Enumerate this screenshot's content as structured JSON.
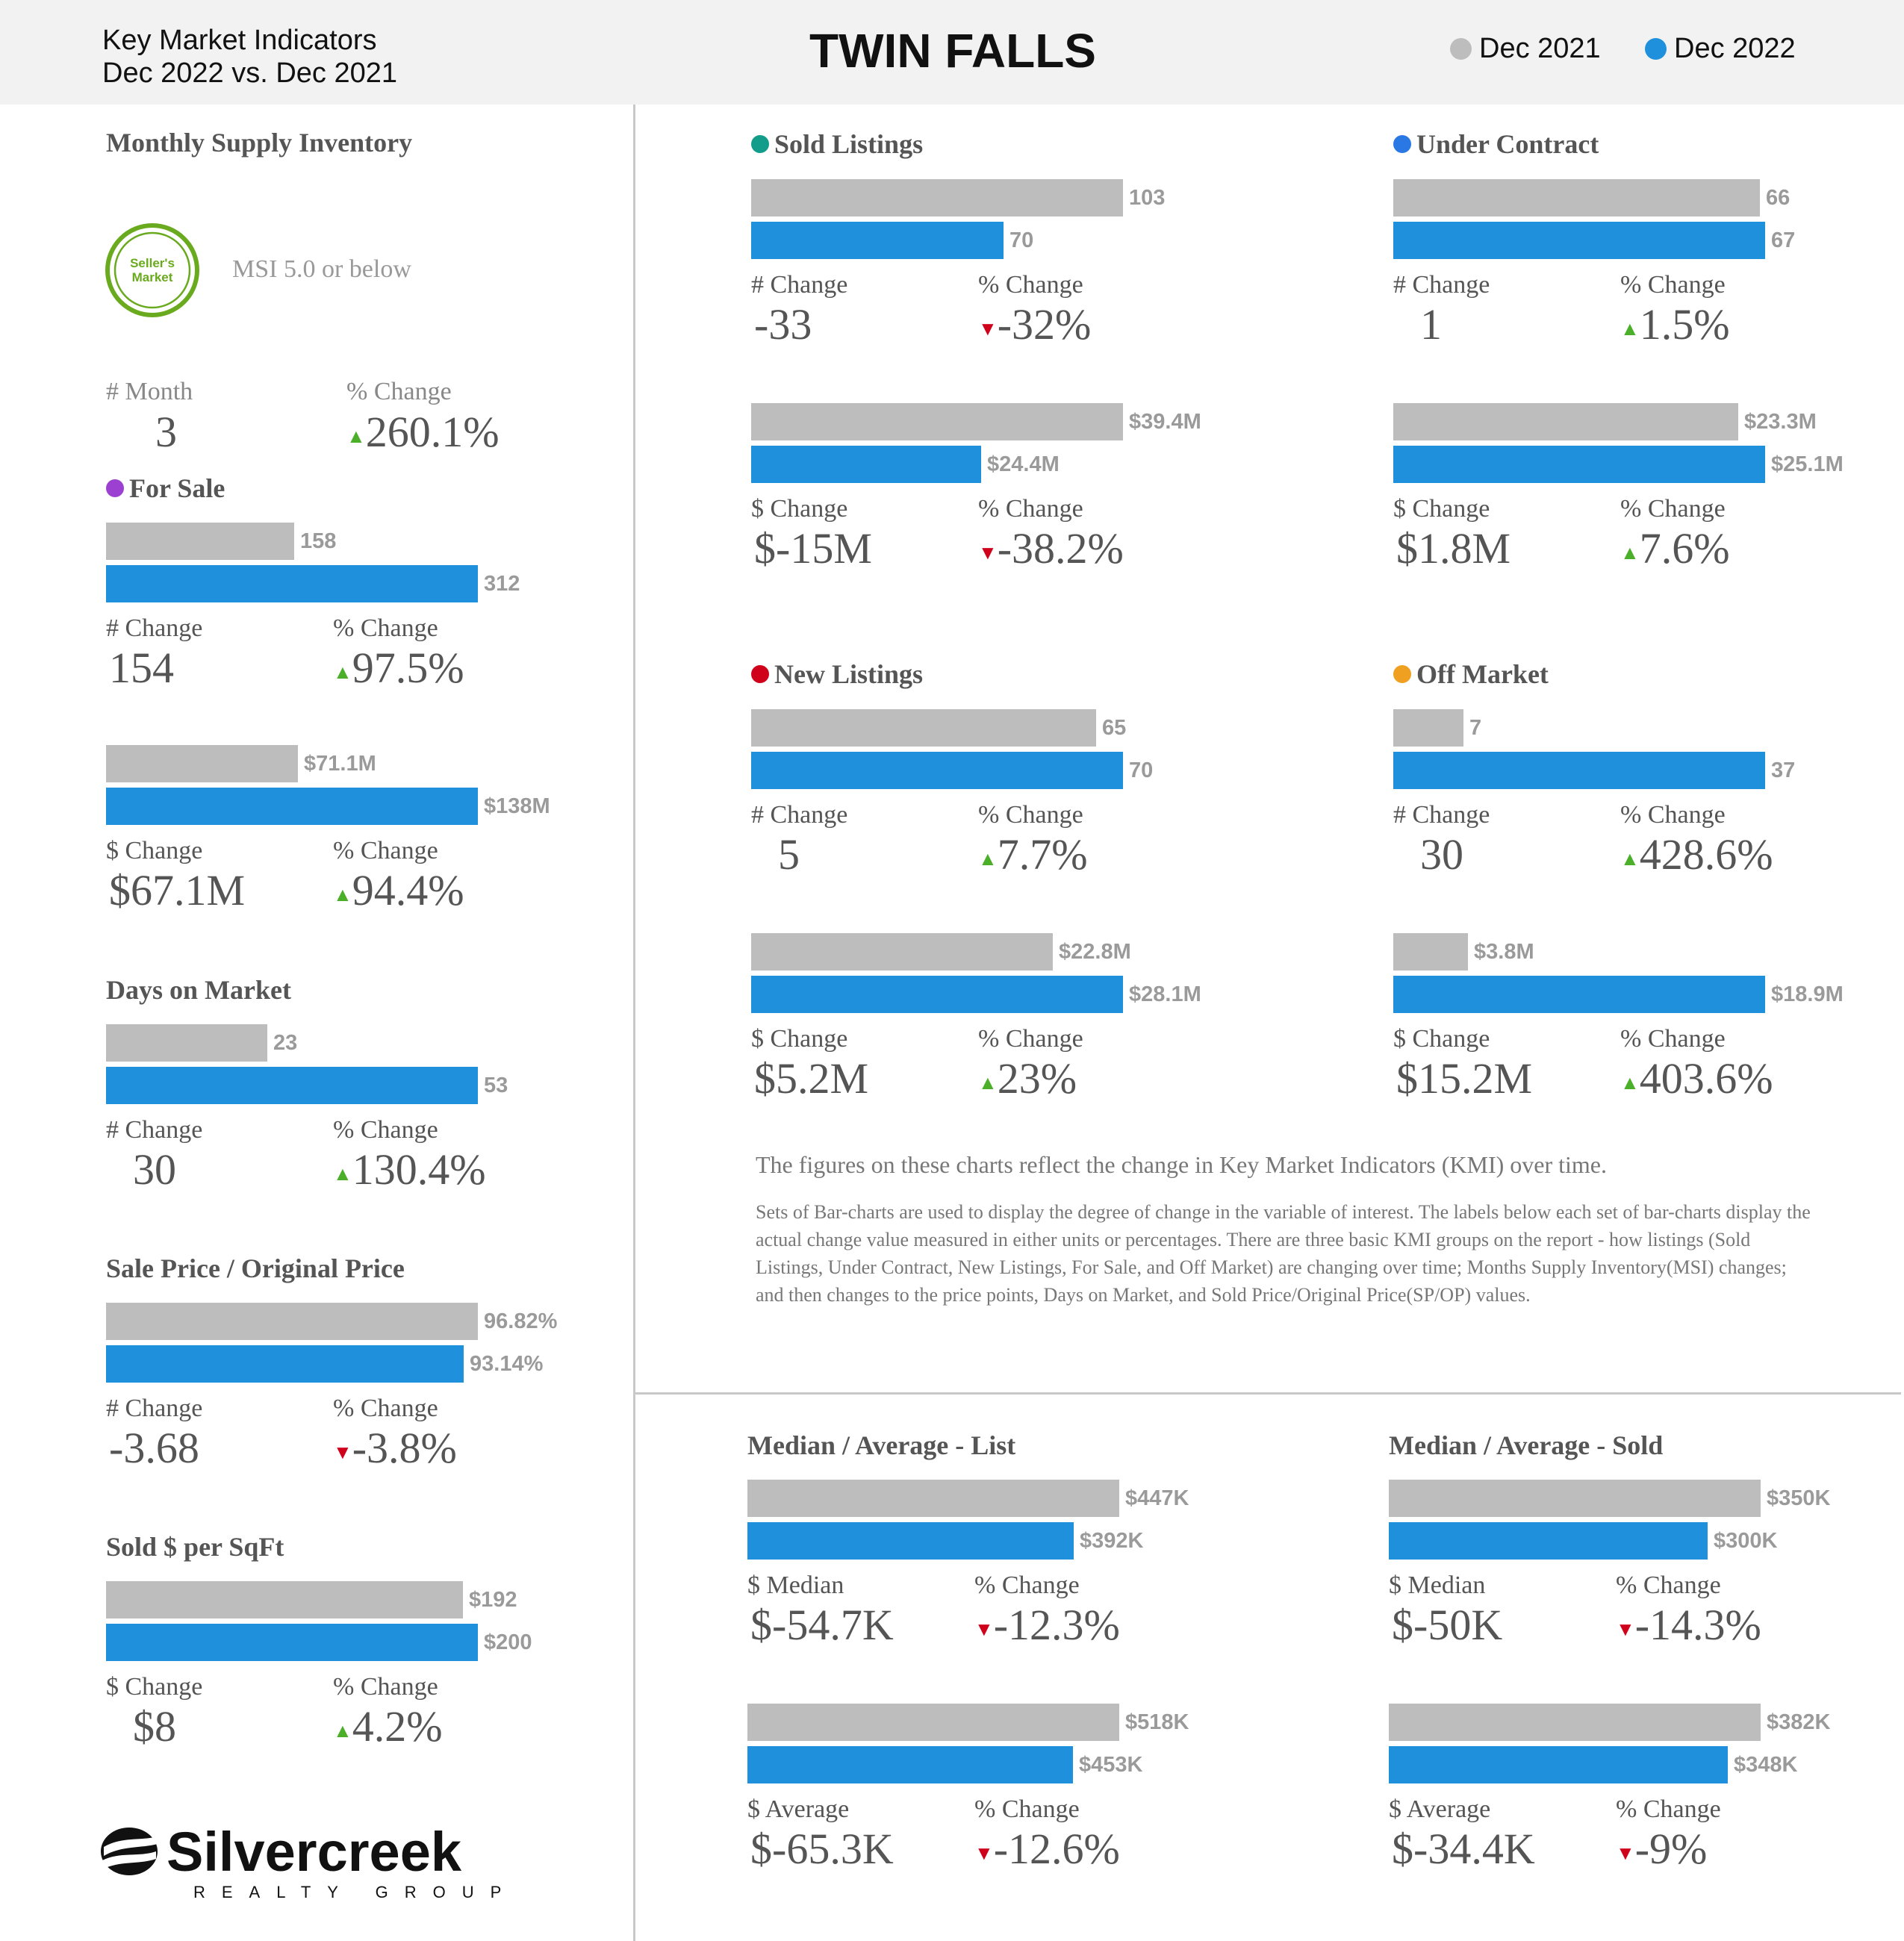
{
  "header": {
    "subtitle_line1": "Key Market Indicators",
    "subtitle_line2": "Dec 2022 vs. Dec 2021",
    "title": "TWIN FALLS",
    "legend": [
      {
        "label": "Dec 2021",
        "color": "#bdbdbd"
      },
      {
        "label": "Dec 2022",
        "color": "#1e90dc"
      }
    ]
  },
  "msi": {
    "title": "Monthly Supply Inventory",
    "badge_text_line1": "Seller's",
    "badge_text_line2": "Market",
    "badge_color": "#6aaa1e",
    "criteria": "MSI 5.0 or below",
    "change_label": "# Month",
    "change_value": "3",
    "pct_label": "% Change",
    "pct_value": "260.1%",
    "pct_dir": "up"
  },
  "footer_note": {
    "lead": "The figures on these charts reflect the change in Key Market Indicators (KMI) over time.",
    "body": "Sets of Bar-charts are used to display the degree of change in the variable of interest. The labels below each set of bar-charts display the actual change value measured in either units or percentages. There are three basic KMI groups on the report - how listings (Sold Listings, Under Contract, New Listings, For Sale, and Off Market) are changing over time; Months Supply Inventory(MSI) changes; and then changes to the price points, Days on Market, and Sold Price/Original Price(SP/OP) values."
  },
  "logo": {
    "name": "Silvercreek",
    "tagline": "REALTY GROUP"
  },
  "chart_data": [
    {
      "type": "bar",
      "id": "for-sale-count",
      "title": "For Sale",
      "title_dot": "#9b40d0",
      "categories": [
        "Dec 2021",
        "Dec 2022"
      ],
      "values": [
        158,
        312
      ],
      "labels": [
        "158",
        "312"
      ],
      "change_label": "# Change",
      "change_value": "154",
      "pct_label": "% Change",
      "pct_value": "97.5%",
      "pct_dir": "up"
    },
    {
      "type": "bar",
      "id": "for-sale-volume",
      "title": "",
      "categories": [
        "Dec 2021",
        "Dec 2022"
      ],
      "values": [
        71.1,
        138
      ],
      "labels": [
        "$71.1M",
        "$138M"
      ],
      "change_label": "$ Change",
      "change_value": "$67.1M",
      "pct_label": "% Change",
      "pct_value": "94.4%",
      "pct_dir": "up"
    },
    {
      "type": "bar",
      "id": "days-on-market",
      "title": "Days on Market",
      "categories": [
        "Dec 2021",
        "Dec 2022"
      ],
      "values": [
        23,
        53
      ],
      "labels": [
        "23",
        "53"
      ],
      "change_label": "# Change",
      "change_value": "30",
      "pct_label": "% Change",
      "pct_value": "130.4%",
      "pct_dir": "up"
    },
    {
      "type": "bar",
      "id": "sale-original-price",
      "title": "Sale Price / Original Price",
      "categories": [
        "Dec 2021",
        "Dec 2022"
      ],
      "values": [
        96.82,
        93.14
      ],
      "labels": [
        "96.82%",
        "93.14%"
      ],
      "change_label": "# Change",
      "change_value": "-3.68",
      "pct_label": "% Change",
      "pct_value": "-3.8%",
      "pct_dir": "down"
    },
    {
      "type": "bar",
      "id": "sold-per-sqft",
      "title": "Sold $ per SqFt",
      "categories": [
        "Dec 2021",
        "Dec 2022"
      ],
      "values": [
        192,
        200
      ],
      "labels": [
        "$192",
        "$200"
      ],
      "change_label": "$ Change",
      "change_value": "$8",
      "pct_label": "% Change",
      "pct_value": "4.2%",
      "pct_dir": "up"
    },
    {
      "type": "bar",
      "id": "sold-listings-count",
      "title": "Sold Listings",
      "title_dot": "#129c8a",
      "categories": [
        "Dec 2021",
        "Dec 2022"
      ],
      "values": [
        103,
        70
      ],
      "labels": [
        "103",
        "70"
      ],
      "change_label": "# Change",
      "change_value": "-33",
      "pct_label": "% Change",
      "pct_value": "-32%",
      "pct_dir": "down"
    },
    {
      "type": "bar",
      "id": "sold-listings-volume",
      "title": "",
      "categories": [
        "Dec 2021",
        "Dec 2022"
      ],
      "values": [
        39.4,
        24.4
      ],
      "labels": [
        "$39.4M",
        "$24.4M"
      ],
      "change_label": "$ Change",
      "change_value": "$-15M",
      "pct_label": "% Change",
      "pct_value": "-38.2%",
      "pct_dir": "down"
    },
    {
      "type": "bar",
      "id": "under-contract-count",
      "title": "Under Contract",
      "title_dot": "#2a78e4",
      "categories": [
        "Dec 2021",
        "Dec 2022"
      ],
      "values": [
        66,
        67
      ],
      "labels": [
        "66",
        "67"
      ],
      "change_label": "# Change",
      "change_value": "1",
      "pct_label": "% Change",
      "pct_value": "1.5%",
      "pct_dir": "up"
    },
    {
      "type": "bar",
      "id": "under-contract-volume",
      "title": "",
      "categories": [
        "Dec 2021",
        "Dec 2022"
      ],
      "values": [
        23.3,
        25.1
      ],
      "labels": [
        "$23.3M",
        "$25.1M"
      ],
      "change_label": "$ Change",
      "change_value": "$1.8M",
      "pct_label": "% Change",
      "pct_value": "7.6%",
      "pct_dir": "up"
    },
    {
      "type": "bar",
      "id": "new-listings-count",
      "title": "New Listings",
      "title_dot": "#d0021b",
      "categories": [
        "Dec 2021",
        "Dec 2022"
      ],
      "values": [
        65,
        70
      ],
      "labels": [
        "65",
        "70"
      ],
      "change_label": "# Change",
      "change_value": "5",
      "pct_label": "% Change",
      "pct_value": "7.7%",
      "pct_dir": "up"
    },
    {
      "type": "bar",
      "id": "new-listings-volume",
      "title": "",
      "categories": [
        "Dec 2021",
        "Dec 2022"
      ],
      "values": [
        22.8,
        28.1
      ],
      "labels": [
        "$22.8M",
        "$28.1M"
      ],
      "change_label": "$ Change",
      "change_value": "$5.2M",
      "pct_label": "% Change",
      "pct_value": "23%",
      "pct_dir": "up"
    },
    {
      "type": "bar",
      "id": "off-market-count",
      "title": "Off Market",
      "title_dot": "#f0a020",
      "categories": [
        "Dec 2021",
        "Dec 2022"
      ],
      "values": [
        7,
        37
      ],
      "labels": [
        "7",
        "37"
      ],
      "change_label": "# Change",
      "change_value": "30",
      "pct_label": "% Change",
      "pct_value": "428.6%",
      "pct_dir": "up"
    },
    {
      "type": "bar",
      "id": "off-market-volume",
      "title": "",
      "categories": [
        "Dec 2021",
        "Dec 2022"
      ],
      "values": [
        3.8,
        18.9
      ],
      "labels": [
        "$3.8M",
        "$18.9M"
      ],
      "change_label": "$ Change",
      "change_value": "$15.2M",
      "pct_label": "% Change",
      "pct_value": "403.6%",
      "pct_dir": "up"
    },
    {
      "type": "bar",
      "id": "list-median",
      "title": "Median / Average - List",
      "categories": [
        "Dec 2021",
        "Dec 2022"
      ],
      "values": [
        447,
        392
      ],
      "labels": [
        "$447K",
        "$392K"
      ],
      "change_label": "$ Median",
      "change_value": "$-54.7K",
      "pct_label": "% Change",
      "pct_value": "-12.3%",
      "pct_dir": "down"
    },
    {
      "type": "bar",
      "id": "list-average",
      "title": "",
      "categories": [
        "Dec 2021",
        "Dec 2022"
      ],
      "values": [
        518,
        453
      ],
      "labels": [
        "$518K",
        "$453K"
      ],
      "change_label": "$ Average",
      "change_value": "$-65.3K",
      "pct_label": "% Change",
      "pct_value": "-12.6%",
      "pct_dir": "down"
    },
    {
      "type": "bar",
      "id": "sold-median",
      "title": "Median / Average - Sold",
      "categories": [
        "Dec 2021",
        "Dec 2022"
      ],
      "values": [
        350,
        300
      ],
      "labels": [
        "$350K",
        "$300K"
      ],
      "change_label": "$ Median",
      "change_value": "$-50K",
      "pct_label": "% Change",
      "pct_value": "-14.3%",
      "pct_dir": "down"
    },
    {
      "type": "bar",
      "id": "sold-average",
      "title": "",
      "categories": [
        "Dec 2021",
        "Dec 2022"
      ],
      "values": [
        382,
        348
      ],
      "labels": [
        "$382K",
        "$348K"
      ],
      "change_label": "$ Average",
      "change_value": "$-34.4K",
      "pct_label": "% Change",
      "pct_value": "-9%",
      "pct_dir": "down"
    }
  ]
}
